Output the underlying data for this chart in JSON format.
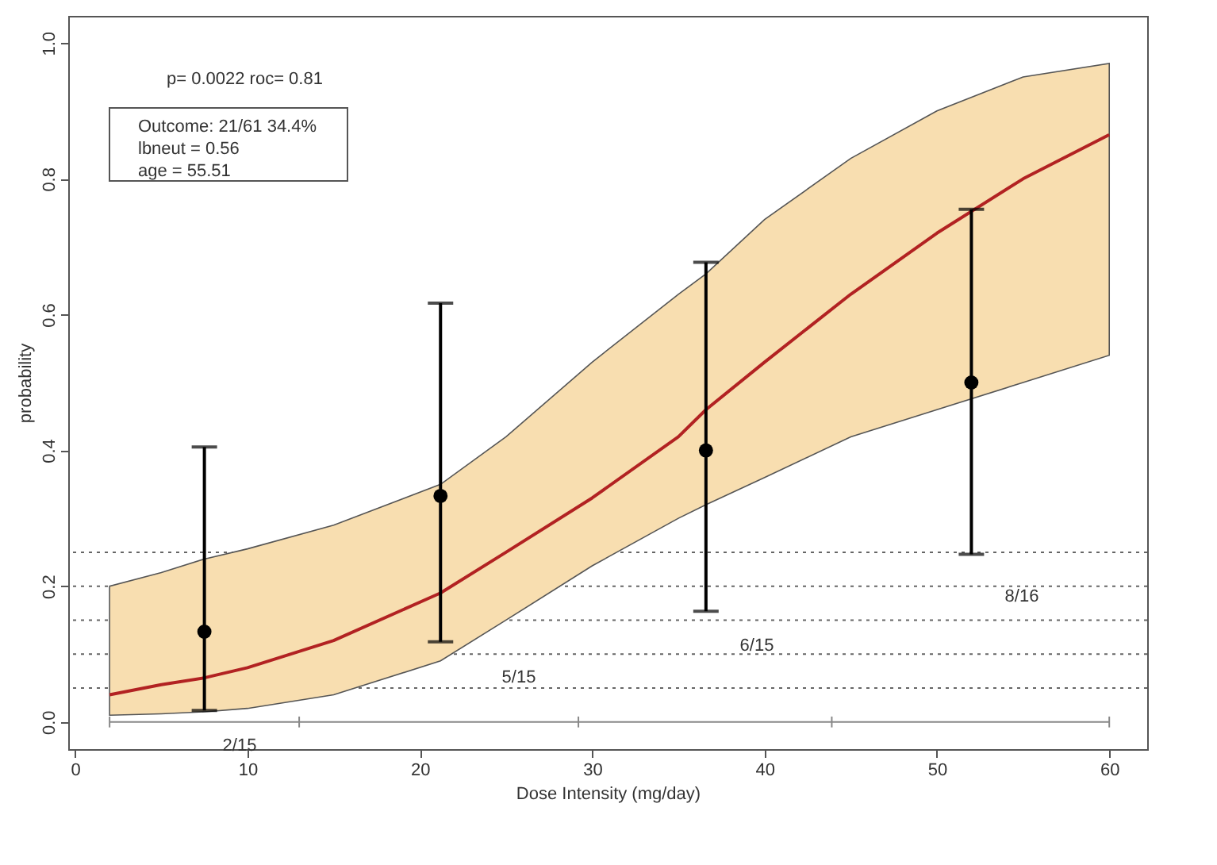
{
  "chart_data": {
    "type": "scatter",
    "xlabel": "Dose Intensity (mg/day)",
    "ylabel": "probability",
    "xlim": [
      -0.4,
      62.2
    ],
    "ylim": [
      -0.04,
      1.04
    ],
    "xticks": [
      0,
      10,
      20,
      30,
      40,
      50,
      60
    ],
    "yticks": [
      {
        "value": 0,
        "label": "0.0"
      },
      0.2,
      0.4,
      0.6,
      0.8,
      {
        "value": 1,
        "label": "1.0"
      }
    ],
    "grid": false,
    "series": [
      {
        "type": "line",
        "color": "#b22222",
        "marker": "none",
        "x": [
          2,
          5,
          7.5,
          10,
          15,
          21.2,
          25,
          30,
          35,
          36.6,
          40,
          45,
          50,
          55,
          60
        ],
        "values": [
          0.04,
          0.055,
          0.065,
          0.08,
          0.12,
          0.19,
          0.25,
          0.33,
          0.42,
          0.46,
          0.53,
          0.63,
          0.72,
          0.8,
          0.865
        ],
        "lower": [
          0.01,
          0.012,
          0.015,
          0.02,
          0.04,
          0.09,
          0.15,
          0.23,
          0.3,
          0.32,
          0.36,
          0.42,
          0.46,
          0.5,
          0.54
        ],
        "upper": [
          0.2,
          0.22,
          0.24,
          0.255,
          0.29,
          0.35,
          0.42,
          0.53,
          0.63,
          0.66,
          0.74,
          0.83,
          0.9,
          0.95,
          0.97
        ]
      },
      {
        "type": "line",
        "color": "#888888",
        "x": [
          2,
          13,
          29.2,
          43.9,
          60
        ],
        "values": [
          0,
          0,
          0,
          0,
          0
        ],
        "errors": [
          0.008,
          0.008,
          0.008,
          0.008,
          0.008
        ]
      },
      {
        "color": "#000000",
        "marker": "circle",
        "x": [
          7.5,
          21.2,
          36.6,
          52
        ],
        "values": [
          0.133,
          0.333,
          0.4,
          0.5
        ],
        "errors": [
          [
            0.017,
            0.405
          ],
          [
            0.118,
            0.617
          ],
          [
            0.163,
            0.677
          ],
          [
            0.247,
            0.755
          ]
        ]
      }
    ],
    "ref_lines": [
      {
        "axis": "y",
        "value": 0.05,
        "color": "#666666",
        "line_style": "dotted"
      },
      {
        "axis": "y",
        "value": 0.1,
        "color": "#666666",
        "line_style": "dotted"
      },
      {
        "axis": "y",
        "value": 0.15,
        "color": "#666666",
        "line_style": "dotted"
      },
      {
        "axis": "y",
        "value": 0.2,
        "color": "#666666",
        "line_style": "dotted"
      },
      {
        "axis": "y",
        "value": 0.25,
        "color": "#666666",
        "line_style": "dotted"
      }
    ],
    "annotations": [
      "p= 0.0022  roc= 0.81",
      "Outcome: 21/61 34.4%",
      "lbneut = 0.56",
      "age = 55.51",
      "2/15",
      "5/15",
      "6/15",
      "8/16"
    ]
  }
}
